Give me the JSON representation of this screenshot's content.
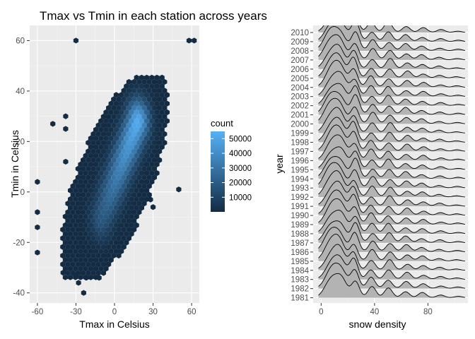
{
  "chart_data": [
    {
      "type": "hexbin",
      "title": "Tmax vs Tmin in each station across years",
      "xlabel": "Tmax in Celsius",
      "ylabel": "Tmin in Celsius",
      "xlim": [
        -66,
        66
      ],
      "ylim": [
        -44,
        66
      ],
      "x_ticks": [
        -60,
        -30,
        0,
        30,
        60
      ],
      "y_ticks": [
        -40,
        -20,
        0,
        20,
        40,
        60
      ],
      "grid": true,
      "legend": {
        "title": "count",
        "ticks": [
          10000,
          20000,
          30000,
          40000,
          50000
        ],
        "tick_labels": [
          "10000",
          "20000",
          "30000",
          "40000",
          "50000"
        ],
        "range": [
          1,
          55000
        ],
        "colors": [
          "#132B43",
          "#56B1F7"
        ],
        "position": "right"
      },
      "hexbin": {
        "main_blob": {
          "center": [
            0,
            5
          ],
          "major_slope": 1.05,
          "x_range": [
            -40,
            40
          ],
          "y_range": [
            -35,
            46
          ]
        },
        "dense_ridge": {
          "from": [
            -10,
            -10
          ],
          "to": [
            18,
            28
          ],
          "peak_count": 53000
        },
        "outliers": [
          [
            -30,
            60
          ],
          [
            58,
            60
          ],
          [
            62,
            60
          ],
          [
            -60,
            4
          ],
          [
            -60,
            -8
          ],
          [
            -48,
            27
          ],
          [
            -38,
            30
          ],
          [
            -38,
            25
          ],
          [
            -38,
            12
          ],
          [
            -60,
            -14
          ],
          [
            -60,
            -24
          ],
          [
            -40,
            -32
          ],
          [
            -30,
            -33
          ],
          [
            -22,
            -34
          ],
          [
            -12,
            -34
          ],
          [
            -24,
            -40
          ],
          [
            50,
            1
          ],
          [
            28,
            -3
          ],
          [
            30,
            -6
          ],
          [
            -28,
            -36
          ]
        ]
      }
    },
    {
      "type": "ridgeline",
      "xlabel": "snow density",
      "ylabel": "year",
      "xlim": [
        -6,
        110
      ],
      "x_ticks": [
        0,
        40,
        80
      ],
      "categories": [
        "1981",
        "1982",
        "1983",
        "1984",
        "1985",
        "1986",
        "1987",
        "1988",
        "1989",
        "1990",
        "1991",
        "1992",
        "1993",
        "1994",
        "1995",
        "1996",
        "1997",
        "1998",
        "1999",
        "2000",
        "2001",
        "2002",
        "2003",
        "2004",
        "2005",
        "2006",
        "2007",
        "2008",
        "2009",
        "2010"
      ],
      "fill": "#b3b3b3",
      "grid": true,
      "density_peaks": [
        {
          "x": 8,
          "width": 5,
          "height": 1.0
        },
        {
          "x": 15,
          "width": 4,
          "height": 0.75
        },
        {
          "x": 25,
          "width": 3,
          "height": 0.95
        },
        {
          "x": 38,
          "width": 3,
          "height": 0.55
        },
        {
          "x": 51,
          "width": 3,
          "height": 0.5
        },
        {
          "x": 64,
          "width": 3,
          "height": 0.35
        },
        {
          "x": 76,
          "width": 3,
          "height": 0.25
        },
        {
          "x": 89,
          "width": 3,
          "height": 0.15
        },
        {
          "x": 102,
          "width": 3,
          "height": 0.08
        }
      ],
      "peak_height_rows": 2.2
    }
  ]
}
